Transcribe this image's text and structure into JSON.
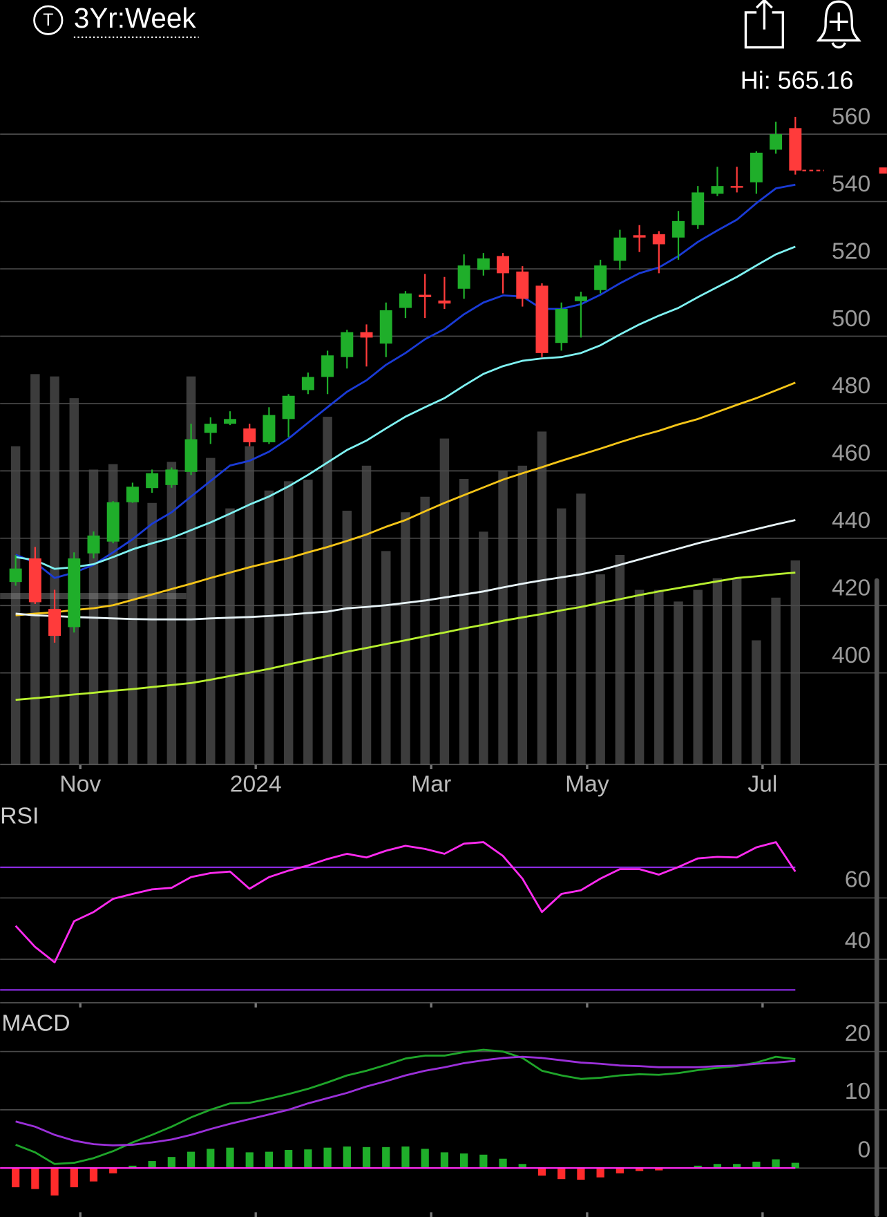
{
  "header": {
    "icon_letter": "T",
    "timeframe": "3Yr:Week"
  },
  "chart_data": [
    {
      "type": "candlestick",
      "hi_label": "Hi: 565.16",
      "categories": [
        null,
        null,
        null,
        "Nov",
        null,
        null,
        null,
        null,
        null,
        null,
        null,
        null,
        "2024",
        null,
        null,
        null,
        null,
        null,
        null,
        null,
        null,
        "Mar",
        null,
        null,
        null,
        null,
        null,
        null,
        null,
        "May",
        null,
        null,
        null,
        null,
        null,
        null,
        null,
        null,
        "Jul",
        null,
        null
      ],
      "open": [
        427,
        434,
        419,
        413.6,
        435.5,
        439,
        450.7,
        454.9,
        455.8,
        459.7,
        471.3,
        474,
        472.6,
        468.5,
        475.4,
        484,
        487.9,
        493.8,
        501.2,
        497.8,
        508.4,
        512.3,
        510.6,
        514.1,
        519.7,
        523.8,
        519.2,
        515,
        498,
        510.4,
        513.7,
        522.4,
        530,
        530.3,
        529.3,
        533,
        542.3,
        544.6,
        545.7,
        555.4,
        561.8
      ],
      "high": [
        435,
        437.4,
        424.7,
        435.8,
        442,
        451,
        456.5,
        460.4,
        461,
        474,
        475.9,
        477.7,
        474,
        478.9,
        482.8,
        489.2,
        495.7,
        501.9,
        503.5,
        510,
        513.4,
        518.5,
        517.6,
        524.3,
        524.7,
        524.7,
        520.8,
        515.7,
        510,
        513.2,
        522.7,
        531.6,
        533,
        531.2,
        537.2,
        544.6,
        550.3,
        550.3,
        554.9,
        563.7,
        565.16
      ],
      "low": [
        425.9,
        420.5,
        409,
        412,
        434,
        438.5,
        450.5,
        453.5,
        455,
        458.8,
        468,
        473.6,
        467.3,
        468,
        470,
        482.8,
        482.8,
        490.4,
        491,
        493.8,
        505.4,
        505.4,
        508.1,
        511.1,
        518,
        512.7,
        508.8,
        493.8,
        495.7,
        499.6,
        512.7,
        519.7,
        525,
        518.7,
        522.7,
        531.9,
        541.6,
        542.7,
        542.3,
        554.2,
        548
      ],
      "close": [
        431,
        421,
        411,
        434,
        440.8,
        450.7,
        455.3,
        459.3,
        460.4,
        469.4,
        474,
        475.4,
        468.5,
        476.6,
        482.3,
        487.9,
        494.3,
        501.2,
        499.6,
        507.7,
        512.7,
        511.6,
        509.7,
        521,
        523.1,
        518.7,
        511.1,
        495,
        508.1,
        511.8,
        521,
        529.3,
        529.3,
        527.3,
        534.2,
        542.7,
        544.6,
        544.1,
        554.5,
        560,
        549.2
      ],
      "up_color": "#1fae2a",
      "down_color": "#ff3b3b",
      "lines": [
        {
          "color": "#1a3bd6",
          "values": [
            435.1,
            432.8,
            428.2,
            429.8,
            432.1,
            435.8,
            439.7,
            444.3,
            447.7,
            452.4,
            457,
            461.6,
            463,
            465.7,
            469.6,
            474.3,
            478.9,
            483.5,
            486.9,
            491.5,
            495,
            499.1,
            502.1,
            506.5,
            510,
            512.1,
            511.8,
            508.1,
            508.1,
            509.5,
            512.3,
            515.7,
            518.7,
            520.4,
            523.8,
            528,
            531.4,
            534.6,
            539.5,
            543.9,
            545
          ]
        },
        {
          "color": "#7ff2f2",
          "values": [
            434.4,
            433.5,
            430.9,
            431.4,
            432.3,
            434.4,
            436.7,
            438.5,
            440.1,
            442.4,
            444.7,
            447.3,
            450,
            452.4,
            455.4,
            458.8,
            462.5,
            466.2,
            469,
            472.6,
            476.1,
            478.9,
            481.6,
            485.3,
            488.8,
            491.1,
            492.7,
            493.4,
            493.8,
            495,
            497.3,
            500.5,
            503.5,
            506.1,
            508.4,
            511.6,
            514.6,
            517.6,
            521,
            524.3,
            526.6
          ]
        },
        {
          "color": "#f5c518",
          "values": [
            417.1,
            417.6,
            418,
            418.7,
            419.2,
            420.1,
            421.7,
            423.3,
            424.9,
            426.5,
            428.2,
            429.8,
            431.4,
            432.8,
            434.1,
            435.8,
            437.4,
            439.2,
            441.1,
            443.4,
            445.4,
            448,
            450.5,
            452.8,
            455.1,
            457.4,
            459.3,
            461.1,
            463,
            464.8,
            466.6,
            468.5,
            470.3,
            471.9,
            473.8,
            475.4,
            477.5,
            479.6,
            481.6,
            483.9,
            486.2
          ]
        },
        {
          "color": "#e8f4f8",
          "values": [
            417.6,
            417.1,
            416.9,
            416.6,
            416.4,
            416.2,
            416,
            415.9,
            415.9,
            415.9,
            416.2,
            416.4,
            416.6,
            416.9,
            417.3,
            417.8,
            418.2,
            419.2,
            419.6,
            420.1,
            420.8,
            421.5,
            422.4,
            423.3,
            424.2,
            425.4,
            426.5,
            427.5,
            428.4,
            429.3,
            430.5,
            432.1,
            433.7,
            435.3,
            436.9,
            438.5,
            439.9,
            441.3,
            442.7,
            444.1,
            445.4
          ]
        },
        {
          "color": "#b8f030",
          "values": [
            392,
            392.5,
            393,
            393.6,
            394.1,
            394.7,
            395.2,
            395.8,
            396.4,
            397,
            398,
            399.1,
            400.1,
            401.2,
            402.5,
            403.8,
            405,
            406.3,
            407.4,
            408.6,
            409.7,
            410.9,
            412,
            413.2,
            414.3,
            415.5,
            416.5,
            417.5,
            418.6,
            419.6,
            420.8,
            421.9,
            423.1,
            424.2,
            425.2,
            426.2,
            427.2,
            428.2,
            428.7,
            429.3,
            429.8
          ]
        }
      ],
      "volume": {
        "color": "#3c3c3c",
        "values": [
          410,
          503,
          500,
          472,
          380,
          387,
          345,
          337,
          390,
          500,
          395,
          330,
          410,
          353,
          365,
          367,
          448,
          327,
          385,
          275,
          325,
          345,
          420,
          368,
          300,
          378,
          385,
          429,
          330,
          349,
          245,
          270,
          225,
          225,
          210,
          225,
          240,
          240,
          160,
          215,
          263
        ]
      },
      "ylim": [
        372.8,
        579.1
      ],
      "yticks": [
        400,
        420,
        440,
        460,
        480,
        500,
        520,
        540,
        560
      ],
      "grid": true
    },
    {
      "type": "rsi",
      "title": "RSI",
      "series": [
        {
          "color": "#ff2bf0",
          "values": [
            50.9,
            44,
            39,
            52.4,
            55.4,
            59.7,
            61.3,
            62.8,
            63.3,
            66.8,
            68.1,
            68.6,
            63,
            66.8,
            68.9,
            70.6,
            72.7,
            74.4,
            73.2,
            75.4,
            77,
            76,
            74.4,
            77.7,
            78.2,
            73.7,
            66.3,
            55.4,
            61.3,
            62.5,
            66.3,
            69.4,
            69.4,
            67.6,
            70.1,
            72.9,
            73.4,
            73.2,
            76.5,
            78.2,
            68.6
          ]
        }
      ],
      "levels": [
        70,
        30
      ],
      "level_color": "#8a2be2",
      "ylim": [
        25.8,
        89.6
      ],
      "yticks": [
        40,
        60
      ],
      "grid": true
    },
    {
      "type": "macd",
      "title": "MACD",
      "series": [
        {
          "color": "#1fa52a",
          "values": [
            4,
            2.7,
            0.7,
            0.9,
            1.7,
            2.9,
            4.4,
            5.7,
            7.1,
            8.7,
            10,
            11.1,
            11.2,
            11.9,
            12.7,
            13.6,
            14.7,
            15.9,
            16.7,
            17.7,
            18.8,
            19.3,
            19.3,
            19.9,
            20.3,
            20,
            18.9,
            16.7,
            15.9,
            15.3,
            15.5,
            15.9,
            16.1,
            16,
            16.3,
            16.8,
            17.2,
            17.5,
            18.1,
            19.1,
            18.7
          ]
        },
        {
          "color": "#9b30d9",
          "values": [
            8,
            7.1,
            5.7,
            4.7,
            4.1,
            3.9,
            4,
            4.4,
            4.9,
            5.7,
            6.7,
            7.6,
            8.4,
            9.2,
            10,
            11.1,
            12,
            12.9,
            14,
            14.9,
            15.9,
            16.7,
            17.3,
            18,
            18.5,
            18.9,
            19.1,
            18.9,
            18.5,
            18.1,
            17.9,
            17.6,
            17.5,
            17.3,
            17.3,
            17.3,
            17.5,
            17.6,
            17.9,
            18.1,
            18.4
          ]
        }
      ],
      "histogram": {
        "up_color": "#1fae2a",
        "down_color": "#ff2b2b",
        "values": [
          -3.3,
          -3.6,
          -4.7,
          -3.3,
          -2.3,
          -0.9,
          0.4,
          1.2,
          1.9,
          2.8,
          3.3,
          3.5,
          2.7,
          2.8,
          3.1,
          3.2,
          3.5,
          3.7,
          3.6,
          3.6,
          3.7,
          3.3,
          2.7,
          2.5,
          2.3,
          1.6,
          0.7,
          -1.3,
          -1.9,
          -2,
          -1.6,
          -0.9,
          -0.5,
          -0.4,
          0.1,
          0.4,
          0.7,
          0.7,
          1.1,
          1.5,
          0.9
        ]
      },
      "zero_color": "#ff2bf0",
      "ylim": [
        -8.4,
        27.3
      ],
      "yticks": [
        0,
        10,
        20
      ],
      "grid": true
    }
  ]
}
